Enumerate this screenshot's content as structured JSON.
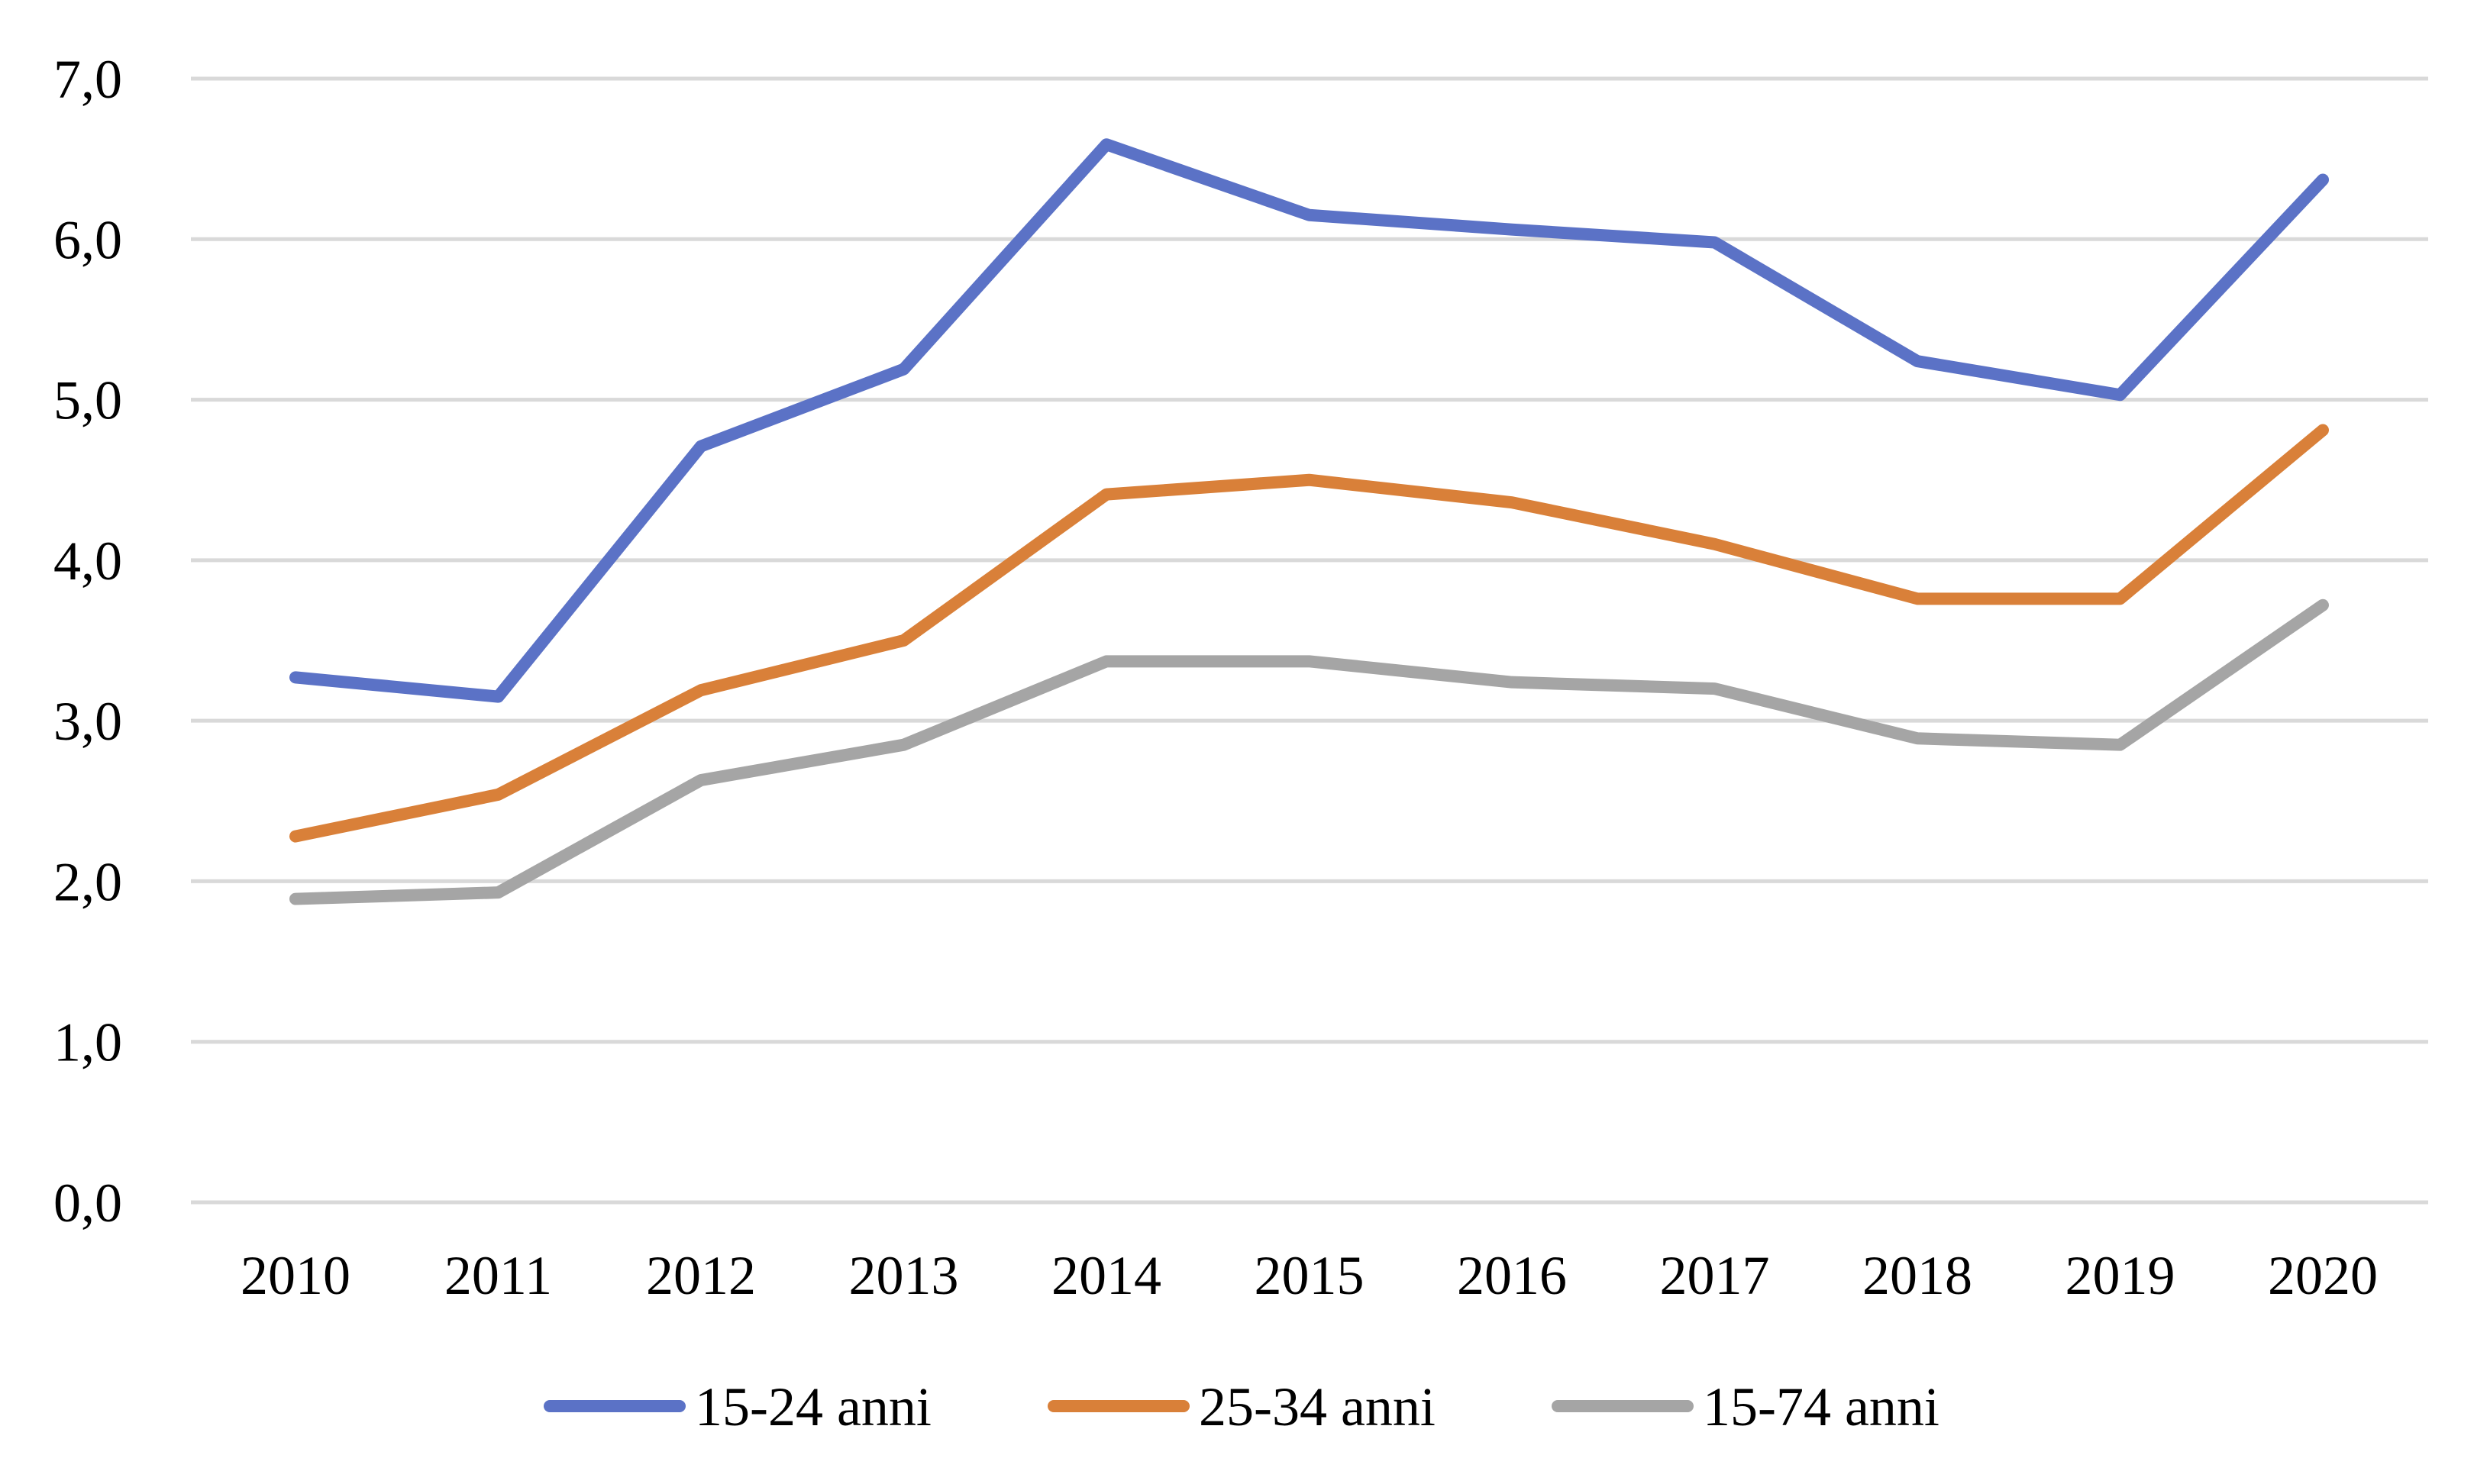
{
  "chart_data": {
    "type": "line",
    "title": "",
    "xlabel": "",
    "ylabel": "",
    "categories": [
      "2010",
      "2011",
      "2012",
      "2013",
      "2014",
      "2015",
      "2016",
      "2017",
      "2018",
      "2019",
      "2020"
    ],
    "ylim": [
      0,
      7
    ],
    "ytick_values": [
      0,
      1,
      2,
      3,
      4,
      5,
      6,
      7
    ],
    "ytick_labels": [
      "0,0",
      "1,0",
      "2,0",
      "3,0",
      "4,0",
      "5,0",
      "6,0",
      "7,0"
    ],
    "grid": true,
    "legend_position": "bottom",
    "series": [
      {
        "name": "15-24 anni",
        "color": "#5b72c6",
        "values": [
          3.27,
          3.15,
          4.71,
          5.19,
          6.59,
          6.15,
          6.06,
          5.98,
          5.24,
          5.03,
          6.37
        ]
      },
      {
        "name": "25-34 anni",
        "color": "#d98039",
        "values": [
          2.28,
          2.54,
          3.19,
          3.5,
          4.41,
          4.5,
          4.36,
          4.1,
          3.76,
          3.76,
          4.81
        ]
      },
      {
        "name": "15-74 anni",
        "color": "#a5a5a5",
        "values": [
          1.89,
          1.93,
          2.63,
          2.85,
          3.37,
          3.37,
          3.24,
          3.2,
          2.89,
          2.85,
          3.72
        ]
      }
    ]
  }
}
